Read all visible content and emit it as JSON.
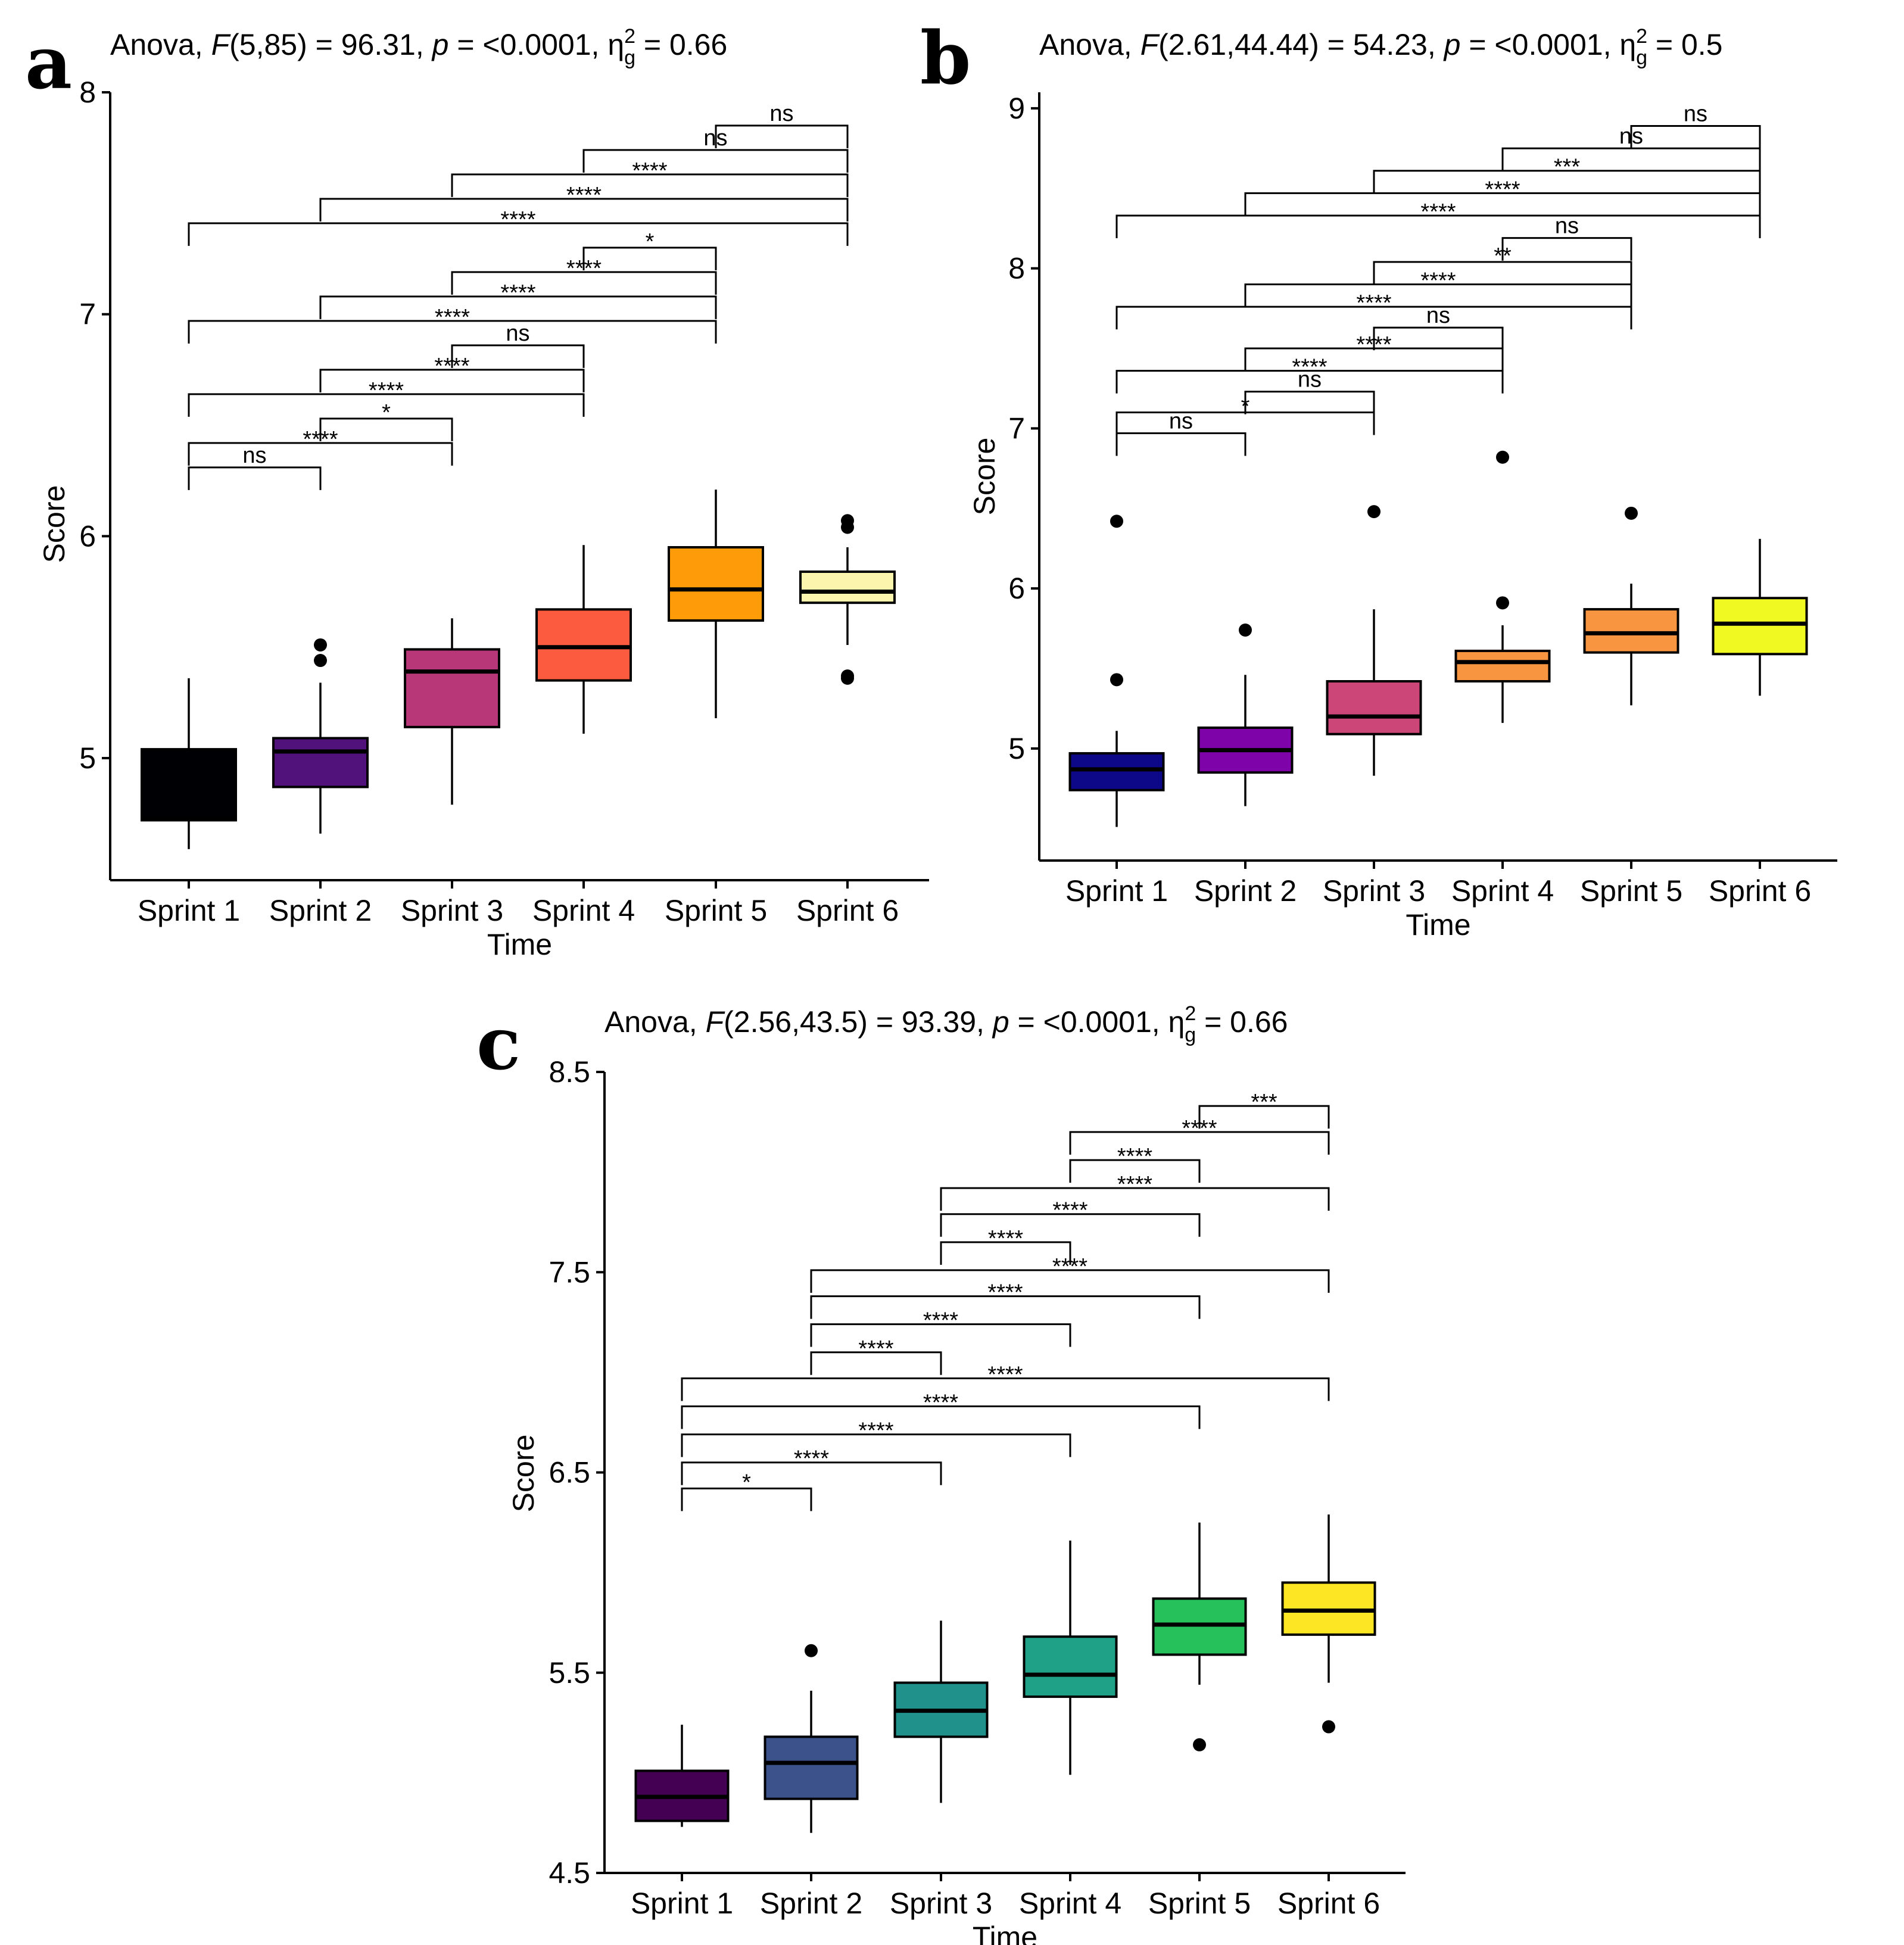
{
  "chart_data": [
    {
      "panel": "a",
      "type": "box",
      "title": {
        "prefix": "Anova, ",
        "F": "F",
        "args": "(5,85) = 96.31, ",
        "p": "p",
        "mid": " = <0.0001, η",
        "sup": "2",
        "sub": "g",
        "end": " = 0.66"
      },
      "xlabel": "Time",
      "ylabel": "Score",
      "ylim": [
        4.45,
        8.0
      ],
      "yticks": [
        5,
        6,
        7,
        8
      ],
      "categories": [
        "Sprint 1",
        "Sprint 2",
        "Sprint 3",
        "Sprint 4",
        "Sprint 5",
        "Sprint 6"
      ],
      "colors": [
        "#000004",
        "#51127c",
        "#b73779",
        "#fc5b3f",
        "#fd9b08",
        "#fcf5ae"
      ],
      "boxes": [
        {
          "min": 4.59,
          "q1": 4.72,
          "median": 4.73,
          "q3": 5.04,
          "max": 5.36,
          "outliers": []
        },
        {
          "min": 4.66,
          "q1": 4.87,
          "median": 5.03,
          "q3": 5.09,
          "max": 5.34,
          "outliers": [
            5.44,
            5.51
          ]
        },
        {
          "min": 4.79,
          "q1": 5.14,
          "median": 5.39,
          "q3": 5.49,
          "max": 5.63,
          "outliers": []
        },
        {
          "min": 5.11,
          "q1": 5.35,
          "median": 5.5,
          "q3": 5.67,
          "max": 5.96,
          "outliers": []
        },
        {
          "min": 5.18,
          "q1": 5.62,
          "median": 5.76,
          "q3": 5.95,
          "max": 6.21,
          "outliers": []
        },
        {
          "min": 5.51,
          "q1": 5.7,
          "median": 5.75,
          "q3": 5.84,
          "max": 5.95,
          "outliers": [
            5.36,
            5.37,
            6.04,
            6.07
          ]
        }
      ],
      "brackets": [
        {
          "from": 0,
          "to": 1,
          "y": 6.31,
          "label": "ns"
        },
        {
          "from": 0,
          "to": 2,
          "y": 6.42,
          "label": "****"
        },
        {
          "from": 1,
          "to": 2,
          "y": 6.53,
          "label": "*"
        },
        {
          "from": 0,
          "to": 3,
          "y": 6.64,
          "label": "****"
        },
        {
          "from": 1,
          "to": 3,
          "y": 6.75,
          "label": "****"
        },
        {
          "from": 2,
          "to": 3,
          "y": 6.86,
          "label": "ns"
        },
        {
          "from": 0,
          "to": 4,
          "y": 6.97,
          "label": "****"
        },
        {
          "from": 1,
          "to": 4,
          "y": 7.08,
          "label": "****"
        },
        {
          "from": 2,
          "to": 4,
          "y": 7.19,
          "label": "****"
        },
        {
          "from": 3,
          "to": 4,
          "y": 7.3,
          "label": "*"
        },
        {
          "from": 0,
          "to": 5,
          "y": 7.41,
          "label": "****"
        },
        {
          "from": 1,
          "to": 5,
          "y": 7.52,
          "label": "****"
        },
        {
          "from": 2,
          "to": 5,
          "y": 7.63,
          "label": "****"
        },
        {
          "from": 3,
          "to": 5,
          "y": 7.74,
          "label": "ns"
        },
        {
          "from": 4,
          "to": 5,
          "y": 7.85,
          "label": "ns"
        }
      ]
    },
    {
      "panel": "b",
      "type": "box",
      "title": {
        "prefix": "Anova, ",
        "F": "F",
        "args": "(2.61,44.44) = 54.23, ",
        "p": "p",
        "mid": " = <0.0001, η",
        "sup": "2",
        "sub": "g",
        "end": " = 0.5"
      },
      "xlabel": "Time",
      "ylabel": "Score",
      "ylim": [
        4.3,
        9.1
      ],
      "yticks": [
        5,
        6,
        7,
        8,
        9
      ],
      "categories": [
        "Sprint 1",
        "Sprint 2",
        "Sprint 3",
        "Sprint 4",
        "Sprint 5",
        "Sprint 6"
      ],
      "colors": [
        "#0d0887",
        "#7e03a8",
        "#cc4778",
        "#f89540",
        "#f89540",
        "#f0f921"
      ],
      "boxes": [
        {
          "min": 4.51,
          "q1": 4.74,
          "median": 4.87,
          "q3": 4.97,
          "max": 5.11,
          "outliers": [
            5.43,
            6.42
          ]
        },
        {
          "min": 4.64,
          "q1": 4.85,
          "median": 4.99,
          "q3": 5.13,
          "max": 5.46,
          "outliers": [
            5.74
          ]
        },
        {
          "min": 4.83,
          "q1": 5.09,
          "median": 5.2,
          "q3": 5.42,
          "max": 5.87,
          "outliers": [
            6.48
          ]
        },
        {
          "min": 5.16,
          "q1": 5.42,
          "median": 5.54,
          "q3": 5.61,
          "max": 5.77,
          "outliers": [
            5.91,
            6.82
          ]
        },
        {
          "min": 5.27,
          "q1": 5.6,
          "median": 5.72,
          "q3": 5.87,
          "max": 6.03,
          "outliers": [
            6.47
          ]
        },
        {
          "min": 5.33,
          "q1": 5.59,
          "median": 5.78,
          "q3": 5.94,
          "max": 6.31,
          "outliers": []
        }
      ],
      "brackets": [
        {
          "from": 0,
          "to": 1,
          "y": 6.97,
          "label": "ns"
        },
        {
          "from": 0,
          "to": 2,
          "y": 7.1,
          "label": "*"
        },
        {
          "from": 1,
          "to": 2,
          "y": 7.23,
          "label": "ns"
        },
        {
          "from": 0,
          "to": 3,
          "y": 7.36,
          "label": "****"
        },
        {
          "from": 1,
          "to": 3,
          "y": 7.5,
          "label": "****"
        },
        {
          "from": 2,
          "to": 3,
          "y": 7.63,
          "label": "ns"
        },
        {
          "from": 0,
          "to": 4,
          "y": 7.76,
          "label": "****"
        },
        {
          "from": 1,
          "to": 4,
          "y": 7.9,
          "label": "****"
        },
        {
          "from": 2,
          "to": 4,
          "y": 8.04,
          "label": "**"
        },
        {
          "from": 3,
          "to": 4,
          "y": 8.19,
          "label": "ns"
        },
        {
          "from": 0,
          "to": 5,
          "y": 8.33,
          "label": "****"
        },
        {
          "from": 1,
          "to": 5,
          "y": 8.47,
          "label": "****"
        },
        {
          "from": 2,
          "to": 5,
          "y": 8.61,
          "label": "***"
        },
        {
          "from": 3,
          "to": 5,
          "y": 8.75,
          "label": "ns"
        },
        {
          "from": 4,
          "to": 5,
          "y": 8.89,
          "label": "ns"
        }
      ]
    },
    {
      "panel": "c",
      "type": "box",
      "title": {
        "prefix": "Anova, ",
        "F": "F",
        "args": "(2.56,43.5) = 93.39, ",
        "p": "p",
        "mid": " = <0.0001, η",
        "sup": "2",
        "sub": "g",
        "end": " = 0.66"
      },
      "xlabel": "Time",
      "ylabel": "Score",
      "ylim": [
        4.5,
        8.5
      ],
      "yticks": [
        4.5,
        5.5,
        6.5,
        7.5,
        8.5
      ],
      "categories": [
        "Sprint 1",
        "Sprint 2",
        "Sprint 3",
        "Sprint 4",
        "Sprint 5",
        "Sprint 6"
      ],
      "colors": [
        "#440154",
        "#3b528b",
        "#21918c",
        "#1fa187",
        "#27c15c",
        "#fde725"
      ],
      "boxes": [
        {
          "min": 4.73,
          "q1": 4.76,
          "median": 4.88,
          "q3": 5.01,
          "max": 5.24,
          "outliers": []
        },
        {
          "min": 4.7,
          "q1": 4.87,
          "median": 5.05,
          "q3": 5.18,
          "max": 5.41,
          "outliers": [
            5.61
          ]
        },
        {
          "min": 4.85,
          "q1": 5.18,
          "median": 5.31,
          "q3": 5.45,
          "max": 5.76,
          "outliers": []
        },
        {
          "min": 4.99,
          "q1": 5.38,
          "median": 5.49,
          "q3": 5.68,
          "max": 6.16,
          "outliers": []
        },
        {
          "min": 5.44,
          "q1": 5.59,
          "median": 5.74,
          "q3": 5.87,
          "max": 6.25,
          "outliers": [
            5.14
          ]
        },
        {
          "min": 5.45,
          "q1": 5.69,
          "median": 5.81,
          "q3": 5.95,
          "max": 6.29,
          "outliers": [
            5.23
          ]
        }
      ],
      "brackets": [
        {
          "from": 0,
          "to": 1,
          "y": 6.42,
          "label": "*"
        },
        {
          "from": 0,
          "to": 2,
          "y": 6.55,
          "label": "****"
        },
        {
          "from": 0,
          "to": 3,
          "y": 6.69,
          "label": "****"
        },
        {
          "from": 0,
          "to": 4,
          "y": 6.83,
          "label": "****"
        },
        {
          "from": 0,
          "to": 5,
          "y": 6.97,
          "label": "****"
        },
        {
          "from": 1,
          "to": 2,
          "y": 7.1,
          "label": "****"
        },
        {
          "from": 1,
          "to": 3,
          "y": 7.24,
          "label": "****"
        },
        {
          "from": 1,
          "to": 4,
          "y": 7.38,
          "label": "****"
        },
        {
          "from": 1,
          "to": 5,
          "y": 7.51,
          "label": "****"
        },
        {
          "from": 2,
          "to": 3,
          "y": 7.65,
          "label": "****"
        },
        {
          "from": 2,
          "to": 4,
          "y": 7.79,
          "label": "****"
        },
        {
          "from": 2,
          "to": 5,
          "y": 7.92,
          "label": "****"
        },
        {
          "from": 3,
          "to": 4,
          "y": 8.06,
          "label": "****"
        },
        {
          "from": 3,
          "to": 5,
          "y": 8.2,
          "label": "****"
        },
        {
          "from": 4,
          "to": 5,
          "y": 8.33,
          "label": "***"
        }
      ]
    }
  ]
}
